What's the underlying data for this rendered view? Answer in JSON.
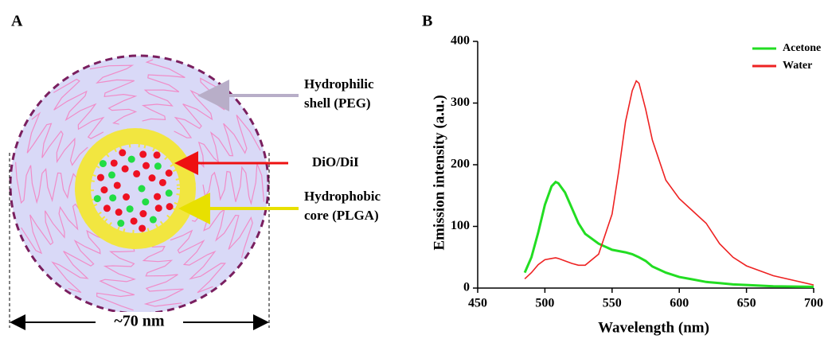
{
  "panel_a": {
    "label": "A",
    "shell_label": [
      "Hydrophilic",
      "shell (PEG)"
    ],
    "dye_label": "DiO/DiI",
    "core_label": [
      "Hydrophobic",
      "core (PLGA)"
    ],
    "size_label": "~70 nm"
  },
  "chart_data": {
    "type": "line",
    "panel_label": "B",
    "x_label": "Wavelength (nm)",
    "y_label": "Emission intensity (a.u.)",
    "x": [
      485,
      490,
      495,
      500,
      505,
      508,
      510,
      515,
      520,
      525,
      530,
      540,
      550,
      555,
      560,
      565,
      568,
      570,
      575,
      580,
      590,
      600,
      610,
      620,
      630,
      640,
      650,
      670,
      700
    ],
    "series": [
      {
        "name": "Acetone",
        "color": "#22dd22",
        "values": [
          25,
          50,
          90,
          135,
          165,
          172,
          170,
          155,
          130,
          105,
          88,
          72,
          62,
          60,
          58,
          55,
          52,
          50,
          44,
          35,
          25,
          18,
          14,
          10,
          8,
          6,
          5,
          3,
          2
        ]
      },
      {
        "name": "Water",
        "color": "#ee2222",
        "values": [
          15,
          25,
          38,
          46,
          48,
          49,
          48,
          44,
          40,
          37,
          37,
          55,
          120,
          190,
          270,
          320,
          336,
          332,
          290,
          240,
          175,
          145,
          125,
          105,
          72,
          50,
          36,
          20,
          5
        ]
      }
    ],
    "xlim": [
      450,
      700
    ],
    "xticks": [
      450,
      500,
      550,
      600,
      650,
      700
    ],
    "ylim": [
      0,
      400
    ],
    "yticks": [
      0,
      100,
      200,
      300,
      400
    ],
    "legend": "upper right"
  }
}
